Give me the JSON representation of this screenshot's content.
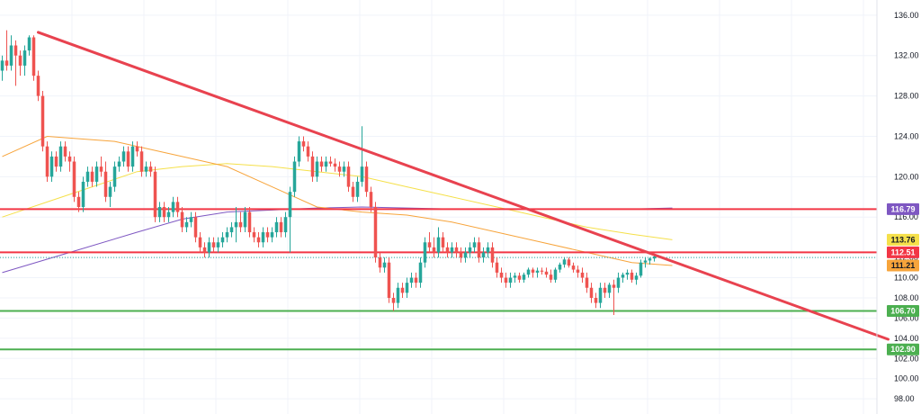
{
  "chart_data": {
    "type": "candlestick",
    "y_axis": {
      "range": [
        96.5,
        137.5
      ],
      "ticks": [
        "136.00",
        "132.00",
        "128.00",
        "124.00",
        "120.00",
        "116.00",
        "112.00",
        "110.00",
        "108.00",
        "106.00",
        "104.00",
        "102.00",
        "100.00",
        "98.00"
      ]
    },
    "grid": true,
    "x_count": 150,
    "colors": {
      "up": "#26a69a",
      "down": "#ef5350",
      "trendline": "#e8424f",
      "resistance": "#f23645",
      "support": "#4caf50",
      "ma_orange": "#f7a43b",
      "ma_yellow": "#f5e04a",
      "ma_purple": "#7e57c2",
      "current": "#26a69a"
    },
    "candles": [
      [
        130.5,
        132.0,
        129.5,
        131.5
      ],
      [
        131.5,
        134.5,
        130.5,
        131.0
      ],
      [
        131.0,
        134.0,
        130.5,
        133.0
      ],
      [
        133.0,
        133.5,
        129.0,
        132.0
      ],
      [
        132.0,
        132.5,
        130.0,
        131.0
      ],
      [
        131.0,
        133.0,
        130.0,
        132.5
      ],
      [
        132.5,
        134.0,
        132.0,
        133.8
      ],
      [
        133.8,
        134.0,
        129.5,
        130.0
      ],
      [
        130.0,
        130.5,
        127.5,
        128.0
      ],
      [
        128.0,
        128.5,
        122.5,
        123.0
      ],
      [
        123.0,
        123.5,
        119.5,
        120.0
      ],
      [
        120.0,
        122.5,
        119.5,
        122.0
      ],
      [
        122.0,
        122.5,
        120.5,
        121.0
      ],
      [
        121.0,
        123.5,
        120.5,
        123.0
      ],
      [
        123.0,
        123.5,
        121.5,
        122.0
      ],
      [
        122.0,
        122.5,
        120.5,
        121.5
      ],
      [
        121.5,
        122.0,
        117.5,
        118.0
      ],
      [
        118.0,
        118.5,
        116.5,
        117.0
      ],
      [
        117.0,
        120.0,
        116.5,
        119.5
      ],
      [
        119.5,
        121.0,
        119.0,
        120.5
      ],
      [
        120.5,
        121.0,
        119.0,
        119.5
      ],
      [
        119.5,
        121.5,
        119.0,
        121.0
      ],
      [
        121.0,
        122.0,
        120.0,
        120.5
      ],
      [
        120.5,
        121.5,
        117.5,
        118.0
      ],
      [
        118.0,
        119.5,
        117.0,
        119.0
      ],
      [
        119.0,
        121.5,
        118.5,
        121.0
      ],
      [
        121.0,
        122.0,
        120.5,
        121.5
      ],
      [
        121.5,
        123.0,
        121.0,
        122.5
      ],
      [
        122.5,
        123.0,
        120.5,
        121.0
      ],
      [
        121.0,
        123.5,
        120.5,
        123.0
      ],
      [
        123.0,
        123.5,
        122.0,
        122.5
      ],
      [
        122.5,
        123.0,
        120.0,
        120.5
      ],
      [
        120.5,
        121.5,
        120.0,
        121.0
      ],
      [
        121.0,
        121.5,
        120.0,
        120.5
      ],
      [
        120.5,
        121.0,
        115.5,
        116.0
      ],
      [
        116.0,
        117.5,
        115.5,
        117.0
      ],
      [
        117.0,
        117.5,
        115.5,
        116.0
      ],
      [
        116.0,
        117.0,
        115.5,
        116.5
      ],
      [
        116.5,
        118.0,
        116.0,
        117.5
      ],
      [
        117.5,
        118.0,
        116.0,
        116.5
      ],
      [
        116.5,
        117.0,
        114.5,
        115.0
      ],
      [
        115.0,
        116.0,
        114.5,
        115.5
      ],
      [
        115.5,
        116.5,
        115.0,
        116.0
      ],
      [
        116.0,
        116.5,
        113.5,
        114.0
      ],
      [
        114.0,
        114.5,
        112.5,
        113.0
      ],
      [
        113.0,
        113.5,
        112.0,
        112.5
      ],
      [
        112.5,
        114.0,
        112.0,
        113.5
      ],
      [
        113.5,
        114.0,
        112.5,
        113.0
      ],
      [
        113.0,
        114.0,
        112.5,
        113.5
      ],
      [
        113.5,
        114.5,
        113.0,
        114.0
      ],
      [
        114.0,
        115.0,
        113.5,
        114.5
      ],
      [
        114.5,
        115.5,
        114.0,
        115.0
      ],
      [
        115.0,
        117.0,
        113.5,
        115.5
      ],
      [
        115.5,
        116.5,
        114.5,
        115.0
      ],
      [
        115.0,
        117.0,
        114.5,
        116.5
      ],
      [
        116.5,
        117.0,
        114.0,
        114.5
      ],
      [
        114.5,
        115.0,
        113.5,
        114.0
      ],
      [
        114.0,
        114.5,
        113.0,
        113.5
      ],
      [
        113.5,
        115.0,
        113.0,
        114.5
      ],
      [
        114.5,
        115.0,
        113.5,
        114.0
      ],
      [
        114.0,
        115.0,
        113.5,
        114.5
      ],
      [
        114.5,
        116.0,
        114.0,
        115.5
      ],
      [
        115.5,
        116.0,
        114.0,
        114.5
      ],
      [
        114.5,
        116.5,
        114.0,
        116.0
      ],
      [
        116.0,
        119.0,
        112.5,
        118.5
      ],
      [
        118.5,
        122.0,
        118.0,
        121.5
      ],
      [
        121.5,
        124.0,
        121.0,
        123.5
      ],
      [
        123.5,
        124.0,
        122.5,
        123.0
      ],
      [
        123.0,
        123.5,
        121.5,
        122.0
      ],
      [
        122.0,
        122.5,
        119.5,
        120.0
      ],
      [
        120.0,
        122.0,
        119.5,
        121.5
      ],
      [
        121.5,
        122.0,
        120.5,
        121.0
      ],
      [
        121.0,
        122.0,
        120.5,
        121.5
      ],
      [
        121.5,
        122.0,
        121.0,
        121.3
      ],
      [
        121.3,
        121.8,
        120.5,
        121.0
      ],
      [
        121.0,
        121.5,
        120.0,
        120.5
      ],
      [
        120.5,
        121.5,
        120.0,
        121.0
      ],
      [
        121.0,
        121.5,
        118.5,
        119.0
      ],
      [
        119.0,
        119.5,
        117.5,
        118.0
      ],
      [
        118.0,
        120.0,
        117.5,
        119.5
      ],
      [
        119.5,
        125.0,
        119.0,
        121.0
      ],
      [
        121.0,
        121.5,
        118.0,
        118.5
      ],
      [
        118.5,
        119.0,
        116.5,
        117.0
      ],
      [
        117.0,
        117.5,
        111.5,
        112.0
      ],
      [
        112.0,
        112.5,
        110.5,
        111.0
      ],
      [
        111.0,
        112.0,
        110.5,
        111.5
      ],
      [
        111.5,
        112.0,
        107.5,
        108.0
      ],
      [
        108.0,
        108.5,
        106.7,
        107.5
      ],
      [
        107.5,
        109.5,
        107.0,
        109.0
      ],
      [
        109.0,
        109.5,
        108.0,
        108.5
      ],
      [
        108.5,
        110.0,
        108.0,
        109.5
      ],
      [
        109.5,
        110.5,
        109.0,
        110.0
      ],
      [
        110.0,
        110.5,
        109.0,
        109.5
      ],
      [
        109.5,
        112.0,
        109.0,
        111.5
      ],
      [
        111.5,
        114.0,
        111.0,
        113.5
      ],
      [
        113.5,
        114.5,
        112.5,
        113.0
      ],
      [
        113.0,
        114.0,
        112.0,
        112.5
      ],
      [
        112.5,
        115.0,
        112.0,
        114.0
      ],
      [
        114.0,
        114.5,
        112.5,
        113.0
      ],
      [
        113.0,
        113.5,
        112.0,
        112.5
      ],
      [
        112.5,
        113.5,
        112.0,
        113.0
      ],
      [
        113.0,
        113.5,
        112.0,
        112.5
      ],
      [
        112.5,
        113.0,
        111.5,
        112.0
      ],
      [
        112.0,
        113.0,
        111.5,
        112.5
      ],
      [
        112.5,
        113.5,
        112.0,
        113.0
      ],
      [
        113.0,
        114.0,
        112.5,
        113.5
      ],
      [
        113.5,
        114.0,
        111.5,
        112.0
      ],
      [
        112.0,
        113.0,
        111.5,
        112.5
      ],
      [
        112.5,
        113.5,
        112.0,
        113.0
      ],
      [
        113.0,
        113.5,
        111.0,
        111.5
      ],
      [
        111.5,
        112.0,
        110.0,
        110.5
      ],
      [
        110.5,
        111.0,
        109.5,
        110.0
      ],
      [
        110.0,
        110.5,
        109.0,
        109.5
      ],
      [
        109.5,
        110.5,
        109.0,
        110.0
      ],
      [
        110.0,
        110.5,
        109.5,
        110.2
      ],
      [
        110.2,
        110.5,
        109.5,
        109.8
      ],
      [
        109.8,
        110.5,
        109.5,
        110.3
      ],
      [
        110.3,
        111.0,
        110.0,
        110.8
      ],
      [
        110.8,
        111.0,
        110.0,
        110.5
      ],
      [
        110.5,
        111.0,
        110.0,
        110.7
      ],
      [
        110.7,
        111.0,
        110.3,
        110.6
      ],
      [
        110.6,
        111.0,
        110.0,
        110.3
      ],
      [
        110.3,
        110.8,
        109.5,
        109.8
      ],
      [
        109.8,
        111.0,
        109.5,
        110.8
      ],
      [
        110.8,
        111.5,
        110.5,
        111.3
      ],
      [
        111.3,
        112.0,
        111.0,
        111.8
      ],
      [
        111.8,
        112.0,
        111.0,
        111.2
      ],
      [
        111.2,
        111.5,
        110.5,
        110.8
      ],
      [
        110.8,
        111.2,
        110.0,
        110.5
      ],
      [
        110.5,
        111.0,
        109.5,
        110.0
      ],
      [
        110.0,
        110.5,
        108.5,
        109.0
      ],
      [
        109.0,
        109.5,
        107.5,
        108.0
      ],
      [
        108.0,
        108.5,
        107.0,
        107.5
      ],
      [
        107.5,
        109.5,
        107.0,
        109.0
      ],
      [
        109.0,
        109.5,
        108.0,
        108.5
      ],
      [
        108.5,
        109.5,
        108.0,
        109.3
      ],
      [
        109.3,
        109.8,
        106.3,
        109.0
      ],
      [
        109.0,
        110.5,
        108.5,
        110.0
      ],
      [
        110.0,
        110.5,
        109.5,
        110.3
      ],
      [
        110.3,
        110.8,
        109.8,
        110.5
      ],
      [
        110.5,
        110.8,
        109.5,
        109.8
      ],
      [
        109.8,
        110.5,
        109.3,
        110.2
      ],
      [
        110.2,
        111.8,
        110.0,
        111.5
      ],
      [
        111.5,
        112.0,
        111.0,
        111.7
      ],
      [
        111.7,
        112.0,
        111.3,
        111.9
      ],
      [
        111.9,
        112.3,
        111.6,
        112.1
      ]
    ],
    "ma_orange": [
      [
        0,
        122.0
      ],
      [
        10,
        124.0
      ],
      [
        25,
        123.5
      ],
      [
        40,
        122.0
      ],
      [
        50,
        121.0
      ],
      [
        60,
        119.0
      ],
      [
        70,
        117.0
      ],
      [
        80,
        116.5
      ],
      [
        90,
        116.2
      ],
      [
        100,
        115.5
      ],
      [
        110,
        114.5
      ],
      [
        120,
        113.5
      ],
      [
        130,
        112.5
      ],
      [
        140,
        111.5
      ],
      [
        149,
        111.21
      ]
    ],
    "ma_yellow": [
      [
        0,
        116.0
      ],
      [
        10,
        117.5
      ],
      [
        20,
        119.0
      ],
      [
        30,
        120.5
      ],
      [
        40,
        121.0
      ],
      [
        50,
        121.3
      ],
      [
        60,
        121.0
      ],
      [
        70,
        120.5
      ],
      [
        80,
        120.0
      ],
      [
        90,
        119.0
      ],
      [
        100,
        118.0
      ],
      [
        110,
        117.0
      ],
      [
        120,
        116.0
      ],
      [
        130,
        115.0
      ],
      [
        140,
        114.3
      ],
      [
        149,
        113.76
      ]
    ],
    "ma_purple": [
      [
        0,
        110.5
      ],
      [
        15,
        112.5
      ],
      [
        30,
        114.5
      ],
      [
        40,
        115.8
      ],
      [
        50,
        116.5
      ],
      [
        60,
        116.7
      ],
      [
        70,
        116.9
      ],
      [
        80,
        117.0
      ],
      [
        90,
        116.9
      ],
      [
        100,
        116.8
      ],
      [
        110,
        116.8
      ],
      [
        120,
        116.8
      ],
      [
        130,
        116.8
      ],
      [
        140,
        116.8
      ],
      [
        149,
        116.9
      ]
    ],
    "trendline": {
      "start": [
        8,
        134.3
      ],
      "end": [
        197,
        103.9
      ]
    },
    "hlines": [
      {
        "value": 116.79,
        "color": "#f23645"
      },
      {
        "value": 112.51,
        "color": "#f23645"
      },
      {
        "value": 106.7,
        "color": "#4caf50"
      },
      {
        "value": 102.9,
        "color": "#4caf50"
      }
    ],
    "current_price": 112.0,
    "badges": [
      {
        "label": "116.79",
        "value": 116.79,
        "bg": "#7e57c2",
        "fg": "#ffffff"
      },
      {
        "label": "113.76",
        "value": 113.76,
        "bg": "#f5e04a",
        "fg": "#131722"
      },
      {
        "label": "112.51",
        "value": 112.51,
        "bg": "#f23645",
        "fg": "#ffffff"
      },
      {
        "label": "111.21",
        "value": 111.21,
        "bg": "#f7a43b",
        "fg": "#131722"
      },
      {
        "label": "106.70",
        "value": 106.7,
        "bg": "#4caf50",
        "fg": "#ffffff"
      },
      {
        "label": "102.90",
        "value": 102.9,
        "bg": "#4caf50",
        "fg": "#ffffff"
      }
    ]
  }
}
